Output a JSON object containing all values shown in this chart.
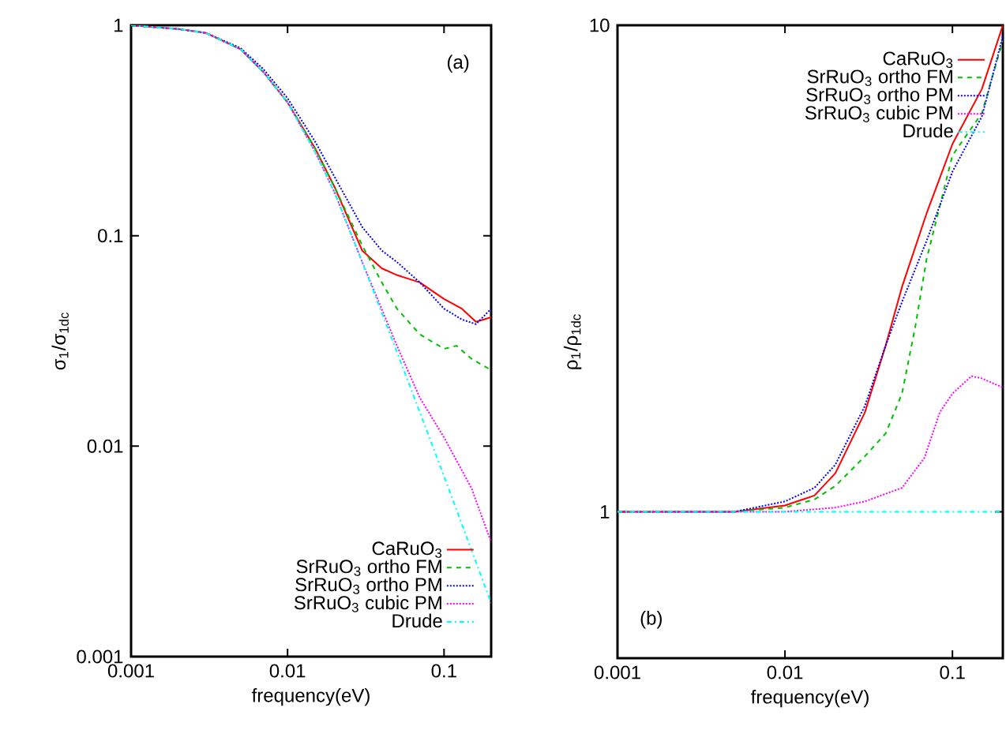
{
  "chart_data": [
    {
      "type": "line",
      "xlabel": "frequency(eV)",
      "ylabel": "σ$_{1}$/σ$_{1dc}$",
      "log": "xy",
      "legend": "bottom right",
      "grid": false,
      "xlim": [
        0.001,
        0.2
      ],
      "ylim": [
        0.001,
        1
      ],
      "xticks": [
        0.001,
        0.01,
        0.1
      ],
      "yticks": [
        0.001,
        0.01,
        0.1,
        1
      ],
      "annotations": [
        "(a)"
      ],
      "series": [
        {
          "name": "CaRuO$_{3}$",
          "color": "#ff0000",
          "line_style": "solid",
          "x": [
            0.001,
            0.002,
            0.003,
            0.005,
            0.007,
            0.01,
            0.015,
            0.02,
            0.03,
            0.04,
            0.05,
            0.07,
            0.1,
            0.13,
            0.16,
            0.18,
            0.2
          ],
          "values": [
            1,
            0.96,
            0.92,
            0.77,
            0.6,
            0.43,
            0.26,
            0.17,
            0.085,
            0.07,
            0.065,
            0.06,
            0.05,
            0.045,
            0.039,
            0.04,
            0.041
          ]
        },
        {
          "name": "SrRuO$_{3}$ ortho FM",
          "color": "#00c000",
          "line_style": "dashed",
          "x": [
            0.001,
            0.002,
            0.003,
            0.005,
            0.007,
            0.01,
            0.015,
            0.02,
            0.03,
            0.04,
            0.05,
            0.07,
            0.1,
            0.12,
            0.15,
            0.2
          ],
          "values": [
            1,
            0.96,
            0.92,
            0.77,
            0.6,
            0.43,
            0.26,
            0.17,
            0.09,
            0.06,
            0.045,
            0.034,
            0.029,
            0.03,
            0.026,
            0.023
          ]
        },
        {
          "name": "SrRuO$_{3}$ ortho PM",
          "color": "#0000ff",
          "line_style": "dotted",
          "x": [
            0.001,
            0.002,
            0.003,
            0.005,
            0.007,
            0.01,
            0.015,
            0.02,
            0.03,
            0.04,
            0.05,
            0.07,
            0.1,
            0.13,
            0.16,
            0.2
          ],
          "values": [
            1,
            0.96,
            0.92,
            0.78,
            0.62,
            0.45,
            0.28,
            0.19,
            0.11,
            0.085,
            0.075,
            0.06,
            0.045,
            0.04,
            0.038,
            0.045
          ]
        },
        {
          "name": "SrRuO$_{3}$ cubic PM",
          "color": "#ff00ff",
          "line_style": "dotted",
          "x": [
            0.001,
            0.002,
            0.003,
            0.005,
            0.007,
            0.01,
            0.015,
            0.02,
            0.03,
            0.05,
            0.07,
            0.1,
            0.15,
            0.2
          ],
          "values": [
            1,
            0.96,
            0.92,
            0.77,
            0.6,
            0.43,
            0.25,
            0.16,
            0.075,
            0.03,
            0.017,
            0.011,
            0.0063,
            0.0035
          ]
        },
        {
          "name": "Drude",
          "color": "#00ffff",
          "line_style": "dashdot",
          "x": [
            0.001,
            0.002,
            0.003,
            0.005,
            0.007,
            0.01,
            0.015,
            0.02,
            0.03,
            0.05,
            0.07,
            0.1,
            0.15,
            0.2
          ],
          "values": [
            1,
            0.96,
            0.92,
            0.77,
            0.6,
            0.43,
            0.25,
            0.16,
            0.075,
            0.028,
            0.0145,
            0.0072,
            0.0032,
            0.0018
          ]
        }
      ]
    },
    {
      "type": "line",
      "xlabel": "frequency(eV)",
      "ylabel": "ρ$_{1}$/ρ$_{1dc}$",
      "log": "xy",
      "legend": "top right",
      "grid": false,
      "xlim": [
        0.001,
        0.2
      ],
      "ylim": [
        0.5,
        10
      ],
      "xticks": [
        0.001,
        0.01,
        0.1
      ],
      "yticks": [
        1,
        10
      ],
      "annotations": [
        "(b)"
      ],
      "series": [
        {
          "name": "CaRuO$_{3}$",
          "color": "#ff0000",
          "line_style": "solid",
          "x": [
            0.001,
            0.005,
            0.01,
            0.015,
            0.02,
            0.03,
            0.04,
            0.05,
            0.07,
            0.1,
            0.15,
            0.2
          ],
          "values": [
            1,
            1,
            1.03,
            1.08,
            1.2,
            1.6,
            2.2,
            2.9,
            4.1,
            5.7,
            7.4,
            10
          ]
        },
        {
          "name": "SrRuO$_{3}$ ortho FM",
          "color": "#00c000",
          "line_style": "dashed",
          "x": [
            0.001,
            0.005,
            0.01,
            0.015,
            0.02,
            0.03,
            0.04,
            0.05,
            0.06,
            0.07,
            0.1,
            0.15,
            0.2
          ],
          "values": [
            1,
            1,
            1.02,
            1.06,
            1.13,
            1.3,
            1.45,
            1.75,
            2.4,
            3.3,
            5.4,
            6.6,
            9.3
          ]
        },
        {
          "name": "SrRuO$_{3}$ ortho PM",
          "color": "#0000ff",
          "line_style": "dotted",
          "x": [
            0.001,
            0.005,
            0.01,
            0.015,
            0.02,
            0.03,
            0.04,
            0.05,
            0.07,
            0.1,
            0.15,
            0.2
          ],
          "values": [
            1,
            1,
            1.05,
            1.12,
            1.25,
            1.65,
            2.2,
            2.7,
            3.6,
            5.0,
            6.5,
            9.5
          ]
        },
        {
          "name": "SrRuO$_{3}$ cubic PM",
          "color": "#ff00ff",
          "line_style": "dotted",
          "x": [
            0.001,
            0.01,
            0.02,
            0.03,
            0.05,
            0.068,
            0.084,
            0.1,
            0.13,
            0.15,
            0.2
          ],
          "values": [
            1,
            1,
            1.02,
            1.05,
            1.12,
            1.29,
            1.6,
            1.75,
            1.9,
            1.88,
            1.8
          ]
        },
        {
          "name": "Drude",
          "color": "#00ffff",
          "line_style": "dashdot",
          "x": [
            0.001,
            0.2
          ],
          "values": [
            1,
            1
          ]
        }
      ]
    }
  ]
}
